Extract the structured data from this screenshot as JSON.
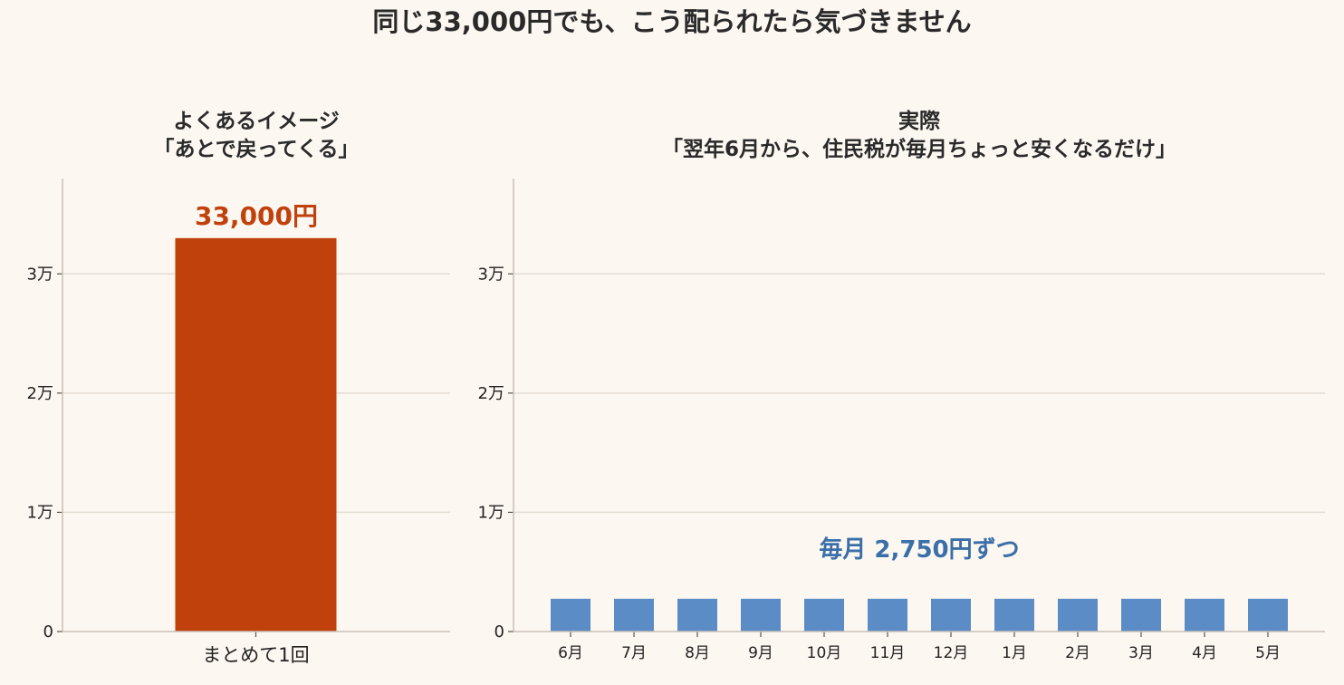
{
  "suptitle": "同じ33,000円でも、こう配られたら気づきません",
  "colors": {
    "background": "#fcf7f1",
    "left_bar": "#c1410c",
    "left_label": "#c1410c",
    "right_bar": "#5b8cc6",
    "right_label": "#3a6fa8"
  },
  "chart_data": [
    {
      "type": "bar",
      "title_line1": "よくあるイメージ",
      "title_line2": "「あとで戻ってくる」",
      "categories": [
        "まとめて1回"
      ],
      "values": [
        33000
      ],
      "ylim": [
        0,
        38000
      ],
      "yticks": [
        0,
        10000,
        20000,
        30000
      ],
      "ytick_labels": [
        "0",
        "1万",
        "2万",
        "3万"
      ],
      "annotation": "33,000円",
      "grid": "horizontal"
    },
    {
      "type": "bar",
      "title_line1": "実際",
      "title_line2": "「翌年6月から、住民税が毎月ちょっと安くなるだけ」",
      "categories": [
        "6月",
        "7月",
        "8月",
        "9月",
        "10月",
        "11月",
        "12月",
        "1月",
        "2月",
        "3月",
        "4月",
        "5月"
      ],
      "values": [
        2750,
        2750,
        2750,
        2750,
        2750,
        2750,
        2750,
        2750,
        2750,
        2750,
        2750,
        2750
      ],
      "ylim": [
        0,
        38000
      ],
      "yticks": [
        0,
        10000,
        20000,
        30000
      ],
      "ytick_labels": [
        "0",
        "1万",
        "2万",
        "3万"
      ],
      "annotation": "毎月 2,750円ずつ",
      "grid": "horizontal"
    }
  ]
}
